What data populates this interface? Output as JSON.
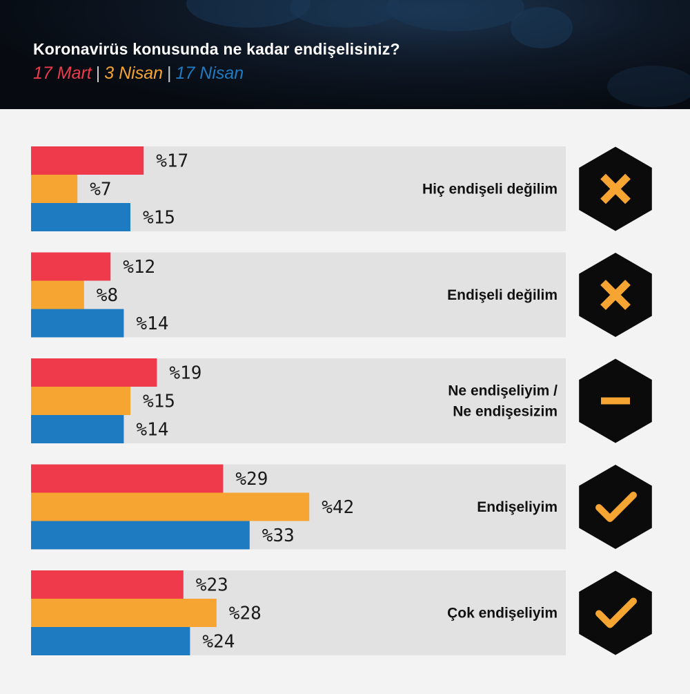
{
  "header": {
    "title": "Koronavirüs konusunda ne kadar endişelisiniz?",
    "separator": "|"
  },
  "colors": {
    "17 Mart": "#ee3a4b",
    "3 Nisan": "#f7a532",
    "17 Nisan": "#1f7bc1",
    "panel": "#e2e2e2",
    "hexagon": "#0b0b0b",
    "icon": "#f7a532"
  },
  "chart_data": {
    "type": "bar",
    "orientation": "horizontal",
    "title": "Koronavirüs konusunda ne kadar endişelisiniz?",
    "categories": [
      "Hiç endişeli değilim",
      "Endişeli değilim",
      "Ne endişeliyim / Ne endişesizim",
      "Endişeliyim",
      "Çok endişeliyim"
    ],
    "category_lines": [
      [
        "Hiç endişeli değilim"
      ],
      [
        "Endişeli değilim"
      ],
      [
        "Ne endişeliyim /",
        "Ne endişesizim"
      ],
      [
        "Endişeliyim"
      ],
      [
        "Çok endişeliyim"
      ]
    ],
    "icons": [
      "x-icon",
      "x-icon",
      "dash-icon",
      "check-icon",
      "check-icon"
    ],
    "value_prefix": "%",
    "series": [
      {
        "name": "17 Mart",
        "values": [
          17,
          12,
          19,
          29,
          23
        ]
      },
      {
        "name": "3 Nisan",
        "values": [
          7,
          8,
          15,
          42,
          28
        ]
      },
      {
        "name": "17 Nisan",
        "values": [
          15,
          14,
          14,
          33,
          24
        ]
      }
    ],
    "xlim": [
      0,
      100
    ],
    "grid": false,
    "legend": "top-left"
  }
}
